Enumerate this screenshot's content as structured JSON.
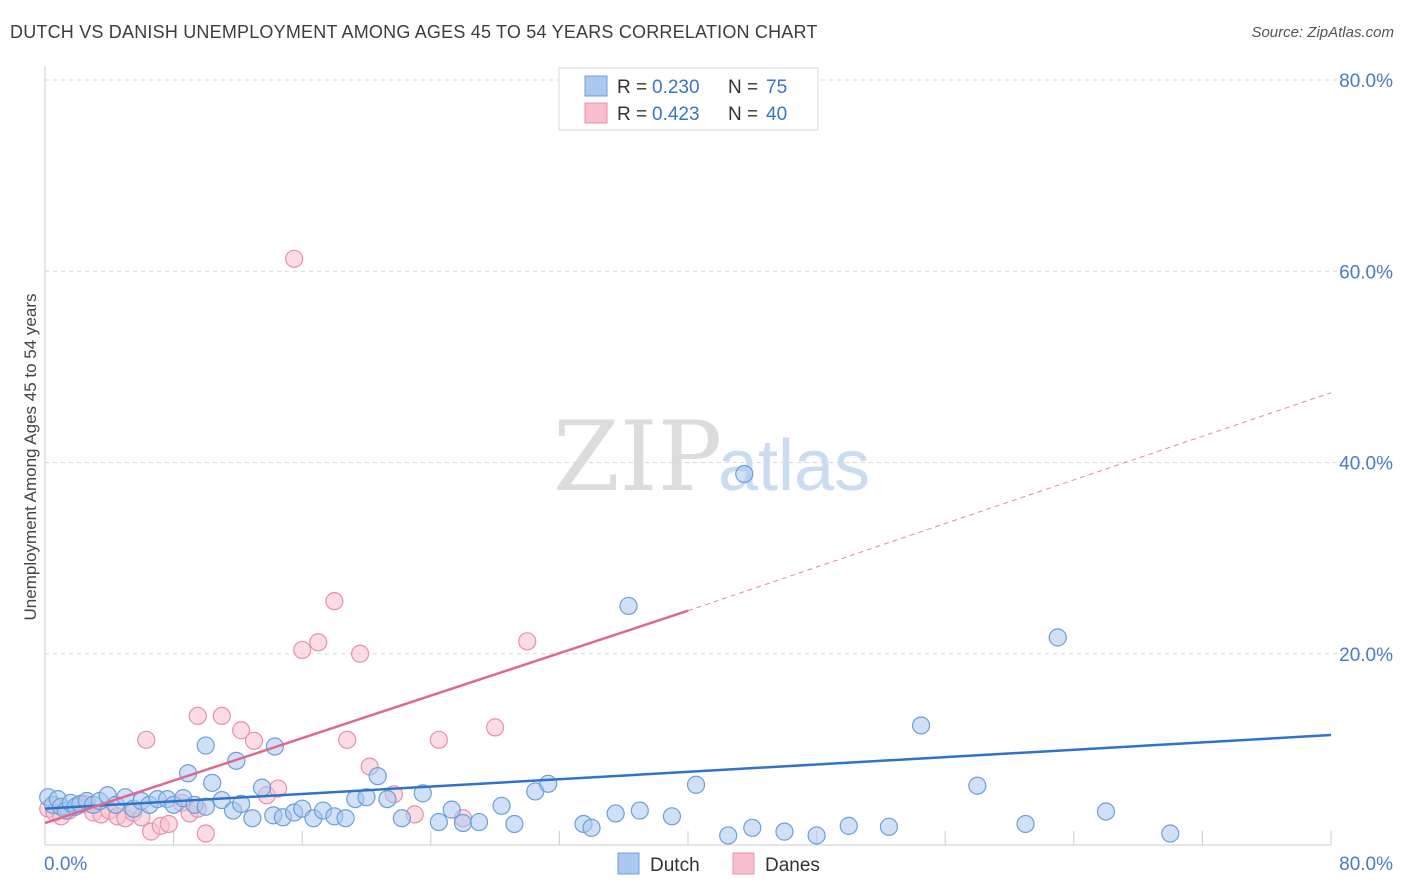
{
  "header": {
    "title": "DUTCH VS DANISH UNEMPLOYMENT AMONG AGES 45 TO 54 YEARS CORRELATION CHART",
    "source": "Source: ZipAtlas.com"
  },
  "watermark": {
    "zip": "ZIP",
    "atlas": "atlas"
  },
  "colors": {
    "dutch_fill": "#aac8f0",
    "dutch_stroke": "#6c9fd8",
    "dutch_line": "#2f74c8",
    "danes_fill": "#f8c0cf",
    "danes_stroke": "#e890aa",
    "danes_line": "#e06890",
    "tick_label": "#4a7cc8",
    "grid": "#d9d9d9"
  },
  "chart_data": {
    "type": "scatter",
    "title": "DUTCH VS DANISH UNEMPLOYMENT AMONG AGES 45 TO 54 YEARS CORRELATION CHART",
    "xlabel": "",
    "ylabel": "Unemployment Among Ages 45 to 54 years",
    "xlim": [
      0,
      80
    ],
    "ylim": [
      0,
      80
    ],
    "x_tick_labels": [
      "0.0%",
      "80.0%"
    ],
    "y_ticks": [
      {
        "value": 20,
        "label": "20.0%"
      },
      {
        "value": 40,
        "label": "40.0%"
      },
      {
        "value": 60,
        "label": "60.0%"
      },
      {
        "value": 80,
        "label": "80.0%"
      }
    ],
    "grid": true,
    "legend": {
      "placement": "top-center",
      "rows": [
        {
          "r_label": "R = ",
          "r_value": "0.230",
          "n_label": "N = ",
          "n_value": "75"
        },
        {
          "r_label": "R = ",
          "r_value": "0.423",
          "n_label": "N = ",
          "n_value": "40"
        }
      ]
    },
    "bottom_legend": [
      "Dutch",
      "Danes"
    ],
    "series": [
      {
        "name": "Dutch",
        "r": 0.23,
        "n": 75,
        "trend": {
          "x0": 0,
          "y0": 3.8,
          "x1": 80,
          "y1": 11.5
        },
        "points": [
          [
            0.2,
            5.0
          ],
          [
            0.5,
            4.2
          ],
          [
            0.8,
            4.8
          ],
          [
            1.0,
            4.0
          ],
          [
            1.3,
            3.6
          ],
          [
            1.6,
            4.4
          ],
          [
            1.9,
            4.0
          ],
          [
            2.2,
            4.3
          ],
          [
            2.6,
            4.6
          ],
          [
            3.0,
            4.2
          ],
          [
            3.4,
            4.6
          ],
          [
            3.9,
            5.2
          ],
          [
            4.4,
            4.2
          ],
          [
            5.0,
            5.0
          ],
          [
            5.5,
            3.8
          ],
          [
            6.0,
            4.6
          ],
          [
            6.5,
            4.2
          ],
          [
            7.0,
            4.8
          ],
          [
            7.6,
            4.8
          ],
          [
            8.0,
            4.2
          ],
          [
            8.6,
            4.9
          ],
          [
            9.3,
            4.2
          ],
          [
            10.0,
            4.0
          ],
          [
            10.4,
            6.5
          ],
          [
            11.0,
            4.7
          ],
          [
            11.7,
            3.6
          ],
          [
            12.2,
            4.3
          ],
          [
            12.9,
            2.8
          ],
          [
            13.5,
            6.0
          ],
          [
            14.2,
            3.1
          ],
          [
            14.8,
            2.9
          ],
          [
            15.5,
            3.4
          ],
          [
            16.0,
            3.8
          ],
          [
            16.7,
            2.8
          ],
          [
            17.3,
            3.6
          ],
          [
            18.0,
            3.0
          ],
          [
            18.7,
            2.8
          ],
          [
            19.3,
            4.8
          ],
          [
            20.0,
            5.0
          ],
          [
            20.7,
            7.2
          ],
          [
            21.3,
            4.8
          ],
          [
            22.2,
            2.8
          ],
          [
            23.5,
            5.4
          ],
          [
            24.5,
            2.4
          ],
          [
            25.3,
            3.7
          ],
          [
            26.0,
            2.3
          ],
          [
            27.0,
            2.4
          ],
          [
            28.4,
            4.1
          ],
          [
            29.2,
            2.2
          ],
          [
            30.5,
            5.6
          ],
          [
            31.3,
            6.4
          ],
          [
            33.5,
            2.2
          ],
          [
            34.0,
            1.8
          ],
          [
            35.5,
            3.3
          ],
          [
            36.3,
            25.0
          ],
          [
            37.0,
            3.6
          ],
          [
            39.0,
            3.0
          ],
          [
            40.5,
            6.3
          ],
          [
            42.5,
            1.0
          ],
          [
            44.0,
            1.8
          ],
          [
            46.0,
            1.4
          ],
          [
            48.0,
            1.0
          ],
          [
            50.0,
            2.0
          ],
          [
            52.5,
            1.9
          ],
          [
            54.5,
            12.5
          ],
          [
            63.0,
            21.7
          ],
          [
            58.0,
            6.2
          ],
          [
            66.0,
            3.5
          ],
          [
            70.0,
            1.2
          ],
          [
            61.0,
            2.2
          ],
          [
            43.5,
            38.8
          ],
          [
            10.0,
            10.4
          ],
          [
            14.3,
            10.3
          ],
          [
            8.9,
            7.5
          ],
          [
            11.9,
            8.8
          ]
        ]
      },
      {
        "name": "Danes",
        "r": 0.423,
        "n": 40,
        "trend": {
          "x0": 0,
          "y0": 2.3,
          "x1": 40,
          "y1": 24.5
        },
        "trend_extension": {
          "x0": 40,
          "y0": 24.5,
          "x1": 80,
          "y1": 47.3
        },
        "points": [
          [
            0.2,
            3.8
          ],
          [
            0.6,
            3.4
          ],
          [
            1.0,
            3.0
          ],
          [
            1.5,
            3.6
          ],
          [
            2.0,
            4.1
          ],
          [
            2.5,
            4.3
          ],
          [
            3.0,
            3.4
          ],
          [
            3.5,
            3.2
          ],
          [
            4.0,
            3.6
          ],
          [
            4.5,
            3.0
          ],
          [
            5.0,
            2.8
          ],
          [
            5.5,
            3.4
          ],
          [
            6.0,
            2.9
          ],
          [
            6.6,
            1.4
          ],
          [
            7.2,
            2.0
          ],
          [
            7.7,
            2.2
          ],
          [
            8.5,
            4.4
          ],
          [
            9.0,
            3.3
          ],
          [
            9.5,
            3.8
          ],
          [
            10.0,
            1.2
          ],
          [
            11.0,
            13.5
          ],
          [
            12.2,
            12.0
          ],
          [
            13.0,
            10.9
          ],
          [
            13.8,
            5.2
          ],
          [
            14.5,
            5.9
          ],
          [
            15.5,
            61.3
          ],
          [
            16.0,
            20.4
          ],
          [
            17.0,
            21.2
          ],
          [
            18.0,
            25.5
          ],
          [
            18.8,
            11.0
          ],
          [
            19.6,
            20.0
          ],
          [
            20.2,
            8.2
          ],
          [
            21.7,
            5.3
          ],
          [
            23.0,
            3.2
          ],
          [
            24.5,
            11.0
          ],
          [
            26.0,
            2.8
          ],
          [
            28.0,
            12.3
          ],
          [
            30.0,
            21.3
          ],
          [
            6.3,
            11.0
          ],
          [
            9.5,
            13.5
          ]
        ]
      }
    ]
  }
}
